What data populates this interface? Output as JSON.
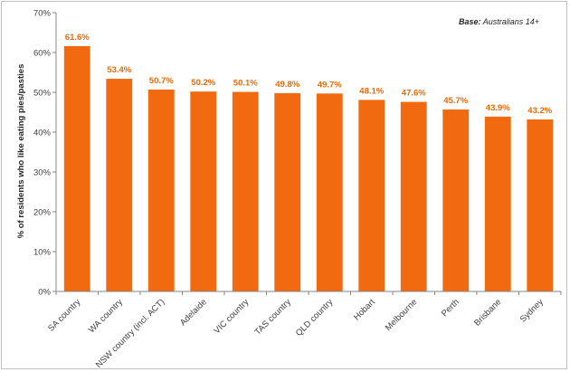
{
  "chart_data": {
    "type": "bar",
    "title": "",
    "xlabel": "",
    "ylabel": "% of residents who like eating pies/pasties",
    "note_bold": "Base:",
    "note_rest": " Australians 14+",
    "ylim": [
      0,
      70
    ],
    "yticks": [
      0,
      10,
      20,
      30,
      40,
      50,
      60,
      70
    ],
    "ytick_labels": [
      "0%",
      "10%",
      "20%",
      "30%",
      "40%",
      "50%",
      "60%",
      "70%"
    ],
    "grid": false,
    "bar_color": "#f26a0f",
    "label_color": "#e36c09",
    "categories": [
      "SA country",
      "WA country",
      "NSW country (incl. ACT)",
      "Adelaide",
      "VIC country",
      "TAS country",
      "QLD country",
      "Hobart",
      "Melbourne",
      "Perth",
      "Brisbane",
      "Sydney"
    ],
    "values": [
      61.6,
      53.4,
      50.7,
      50.2,
      50.1,
      49.8,
      49.7,
      48.1,
      47.6,
      45.7,
      43.9,
      43.2
    ],
    "value_labels": [
      "61.6%",
      "53.4%",
      "50.7%",
      "50.2%",
      "50.1%",
      "49.8%",
      "49.7%",
      "48.1%",
      "47.6%",
      "45.7%",
      "43.9%",
      "43.2%"
    ]
  }
}
